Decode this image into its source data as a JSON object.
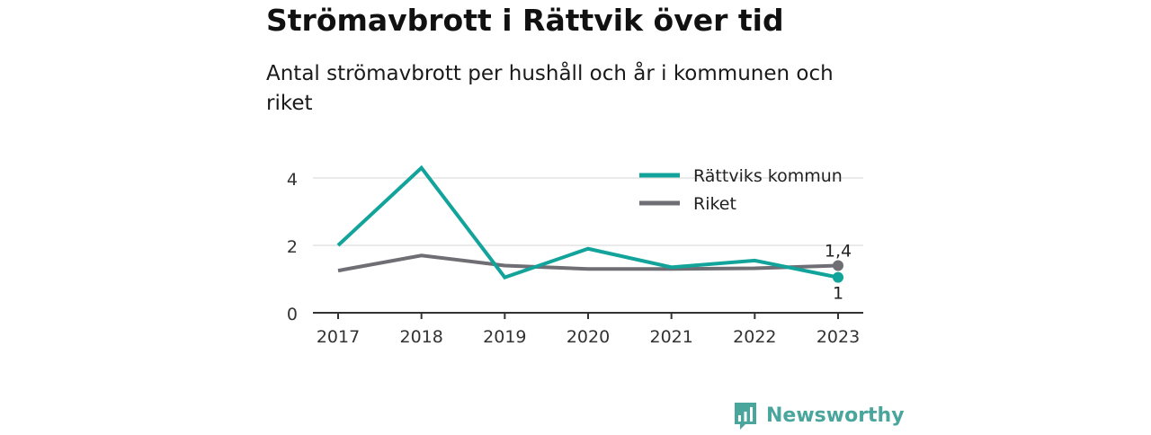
{
  "title": "Strömavbrott i Rättvik över tid",
  "subtitle": "Antal strömavbrott per hushåll och år i kommunen och riket",
  "chart_data": {
    "type": "line",
    "categories": [
      "2017",
      "2018",
      "2019",
      "2020",
      "2021",
      "2022",
      "2023"
    ],
    "series": [
      {
        "name": "Rättviks kommun",
        "color": "#12a39a",
        "values": [
          2.0,
          4.3,
          1.05,
          1.9,
          1.35,
          1.55,
          1.05
        ],
        "end_label": "1"
      },
      {
        "name": "Riket",
        "color": "#6f6e74",
        "values": [
          1.25,
          1.7,
          1.4,
          1.3,
          1.3,
          1.32,
          1.4
        ],
        "end_label": "1,4"
      }
    ],
    "ylim": [
      0,
      4.5
    ],
    "yticks": [
      0,
      2,
      4
    ],
    "grid": true,
    "legend": "top-right",
    "xlabel": "",
    "ylabel": ""
  },
  "logo": {
    "text": "Newsworthy",
    "color": "#4aa69c"
  }
}
